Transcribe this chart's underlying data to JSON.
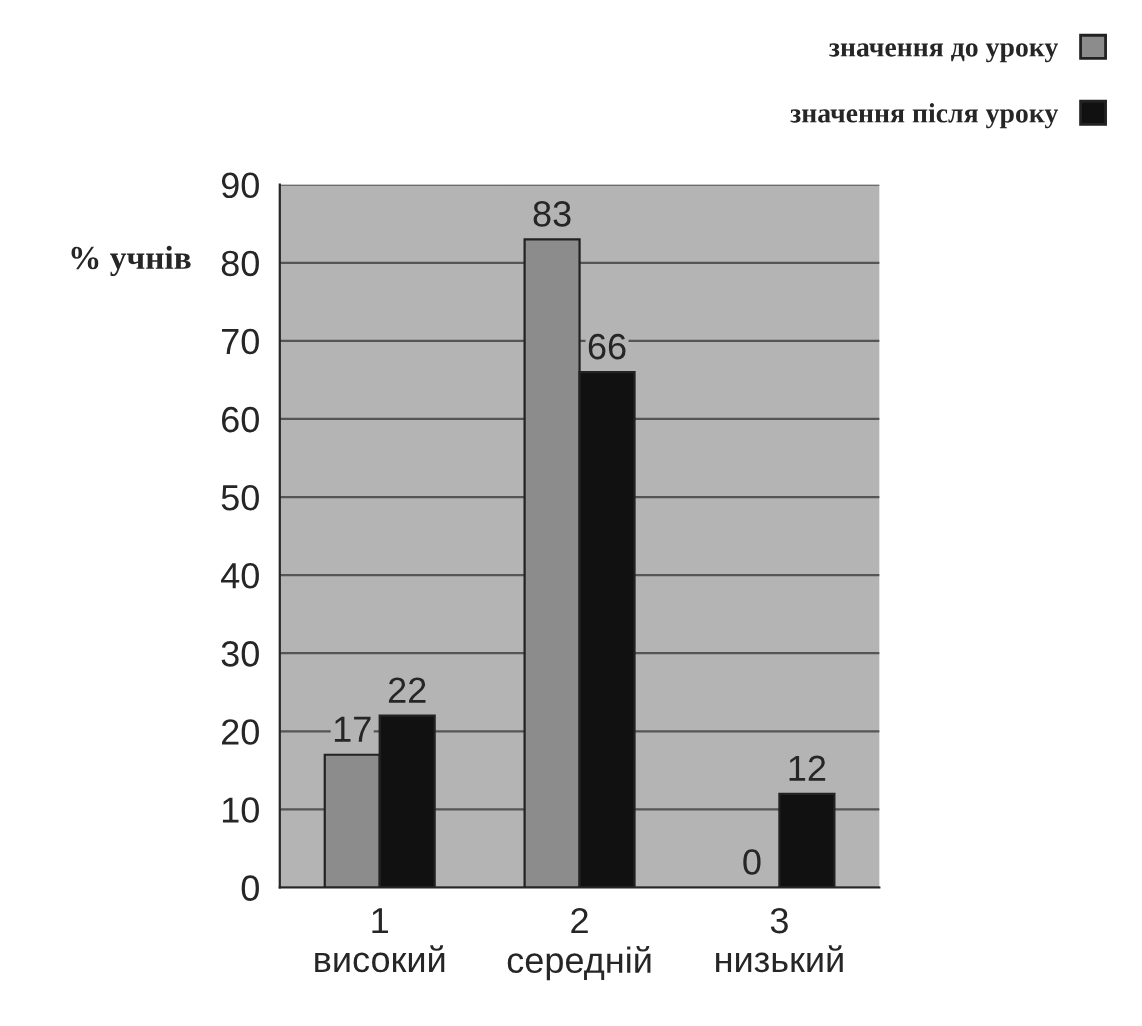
{
  "chart_data": {
    "type": "bar",
    "ylabel": "% учнів",
    "categories": [
      "1\nвисокий",
      "2\nсередній",
      "3\nнизький"
    ],
    "series": [
      {
        "name": "значення до уроку",
        "color": "#8c8c8c",
        "values": [
          17,
          83,
          0
        ]
      },
      {
        "name": "значення після уроку",
        "color": "#111111",
        "values": [
          22,
          66,
          12
        ]
      }
    ],
    "ylim": [
      0,
      90
    ],
    "yticks": [
      0,
      10,
      20,
      30,
      40,
      50,
      60,
      70,
      80,
      90
    ],
    "grid": "y",
    "data_labels": true,
    "legend": "top right"
  }
}
